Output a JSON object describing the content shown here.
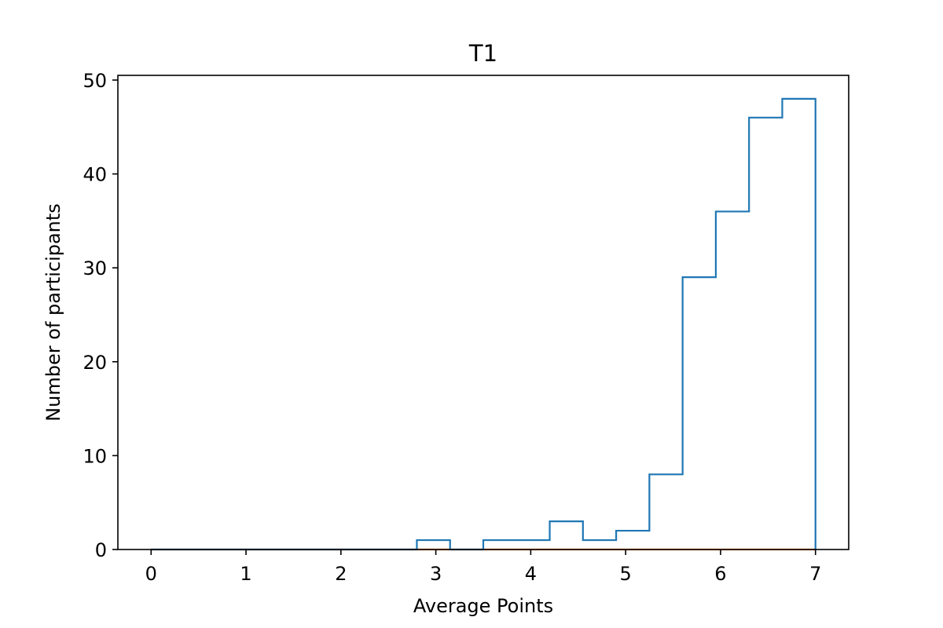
{
  "chart_data": {
    "type": "histogram",
    "title": "T1",
    "xlabel": "Average Points",
    "ylabel": "Number of participants",
    "xlim": [
      -0.35,
      7.35
    ],
    "ylim": [
      0,
      50.5
    ],
    "xticks": [
      0,
      1,
      2,
      3,
      4,
      5,
      6,
      7
    ],
    "yticks": [
      0,
      10,
      20,
      30,
      40,
      50
    ],
    "grid": false,
    "series": [
      {
        "style": "step",
        "color": "#1f77b4",
        "bin_edges": [
          0,
          0.35,
          0.7,
          1.05,
          1.4,
          1.75,
          2.1,
          2.45,
          2.8,
          3.15,
          3.5,
          3.85,
          4.2,
          4.55,
          4.9,
          5.25,
          5.6,
          5.95,
          6.3,
          6.65,
          7.0
        ],
        "counts": [
          0,
          0,
          0,
          0,
          0,
          0,
          0,
          0,
          1,
          0,
          1,
          1,
          3,
          1,
          2,
          8,
          29,
          36,
          46,
          48
        ]
      },
      {
        "style": "step",
        "color": "#ff7f0e",
        "bin_edges": [
          0,
          7.0
        ],
        "counts": [
          0
        ]
      }
    ]
  }
}
